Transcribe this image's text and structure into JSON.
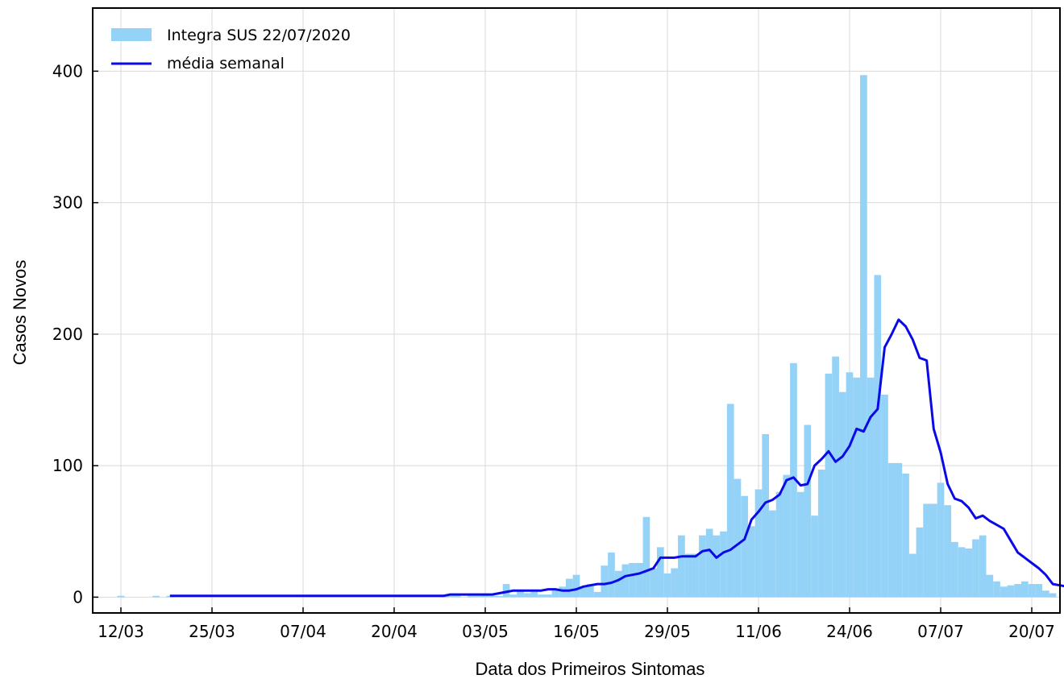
{
  "chart_data": {
    "type": "bar",
    "title": "",
    "xlabel": "Data dos Primeiros Sintomas",
    "ylabel": "Casos Novos",
    "x_ticks": [
      "12/03",
      "25/03",
      "07/04",
      "20/04",
      "03/05",
      "16/05",
      "29/05",
      "11/06",
      "24/06",
      "07/07",
      "20/07"
    ],
    "y_ticks": [
      0,
      100,
      200,
      300,
      400
    ],
    "ylim": [
      -12,
      448
    ],
    "grid": true,
    "legend_position": "top-left",
    "colors": {
      "bars": "#94d2f7",
      "line": "#0a0ae6"
    },
    "series": [
      {
        "name": "Integra SUS 22/07/2020",
        "type": "bar",
        "start_date": "12/03",
        "values": [
          1,
          0,
          0,
          0,
          0,
          1,
          0,
          1,
          0,
          0,
          0,
          0,
          0,
          0,
          0,
          0,
          0,
          0,
          0,
          0,
          0,
          0,
          0,
          0,
          0,
          0,
          0,
          0,
          0,
          0,
          0,
          0,
          0,
          0,
          0,
          0,
          0,
          0,
          0,
          0,
          0,
          0,
          0,
          0,
          0,
          0,
          1,
          1,
          1,
          0,
          1,
          1,
          2,
          1,
          1,
          10,
          2,
          5,
          3,
          4,
          2,
          2,
          5,
          8,
          14,
          17,
          8,
          10,
          4,
          24,
          34,
          20,
          25,
          26,
          26,
          61,
          22,
          38,
          18,
          22,
          47,
          33,
          33,
          47,
          52,
          47,
          50,
          147,
          90,
          77,
          54,
          82,
          124,
          66,
          80,
          93,
          178,
          80,
          131,
          62,
          97,
          170,
          183,
          156,
          171,
          167,
          397,
          167,
          245,
          154,
          102,
          102,
          94,
          33,
          53,
          71,
          71,
          87,
          70,
          42,
          38,
          37,
          44,
          47,
          17,
          12,
          8,
          9,
          10,
          12,
          10,
          10,
          5,
          3
        ]
      },
      {
        "name": "média  semanal",
        "type": "line",
        "start_date": "19/03",
        "values": [
          1,
          1,
          1,
          1,
          1,
          1,
          1,
          1,
          1,
          1,
          1,
          1,
          1,
          1,
          1,
          1,
          1,
          1,
          1,
          1,
          1,
          1,
          1,
          1,
          1,
          1,
          1,
          1,
          1,
          1,
          1,
          1,
          1,
          1,
          1,
          1,
          1,
          1,
          1,
          1,
          2,
          2,
          2,
          2,
          2,
          2,
          2,
          3,
          4,
          5,
          5,
          5,
          5,
          5,
          6,
          6,
          5,
          5,
          6,
          8,
          9,
          10,
          10,
          11,
          13,
          16,
          17,
          18,
          20,
          22,
          30,
          30,
          30,
          31,
          31,
          31,
          35,
          36,
          30,
          34,
          36,
          40,
          44,
          59,
          65,
          72,
          74,
          78,
          89,
          91,
          85,
          86,
          100,
          105,
          111,
          103,
          107,
          115,
          128,
          126,
          137,
          143,
          190,
          200,
          211,
          206,
          196,
          182,
          180,
          128,
          110,
          86,
          75,
          73,
          68,
          60,
          62,
          58,
          55,
          52,
          43,
          34,
          30,
          26,
          22,
          17,
          10,
          9,
          8,
          7,
          6,
          5,
          3
        ]
      }
    ]
  }
}
